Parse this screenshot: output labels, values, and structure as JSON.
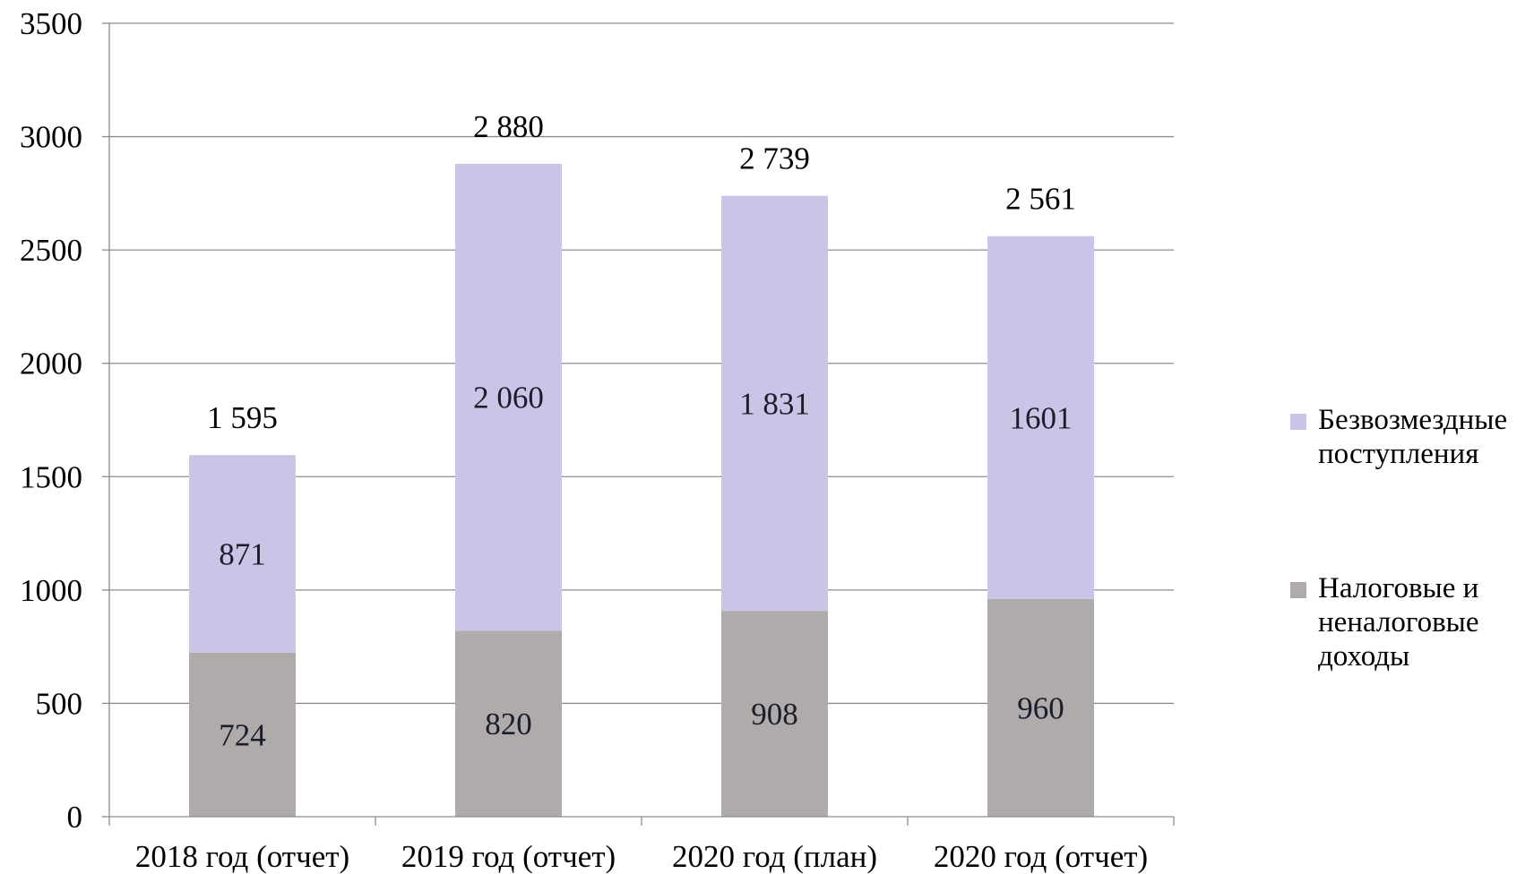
{
  "chart_data": {
    "type": "bar",
    "stacked": true,
    "categories": [
      "2018 год (отчет)",
      "2019 год (отчет)",
      "2020 год (план)",
      "2020 год (отчет)"
    ],
    "series": [
      {
        "name": "Налоговые и неналоговые доходы",
        "values": [
          724,
          820,
          908,
          960
        ],
        "labels": [
          "724",
          "820",
          "908",
          "960"
        ],
        "color": "#aeabaa"
      },
      {
        "name": "Безвозмездные поступления",
        "values": [
          871,
          2060,
          1831,
          1601
        ],
        "labels": [
          "871",
          "2 060",
          "1 831",
          "1601"
        ],
        "color": "#cac5e6"
      }
    ],
    "totals": [
      "1 595",
      "2 880",
      "2 739",
      "2 561"
    ],
    "ylim": [
      0,
      3500
    ],
    "yticks": [
      0,
      500,
      1000,
      1500,
      2000,
      2500,
      3000,
      3500
    ],
    "grid": true,
    "legend_position": "right",
    "colors": {
      "gridline": "#8c8c8c",
      "axis": "#8c8c8c"
    }
  }
}
